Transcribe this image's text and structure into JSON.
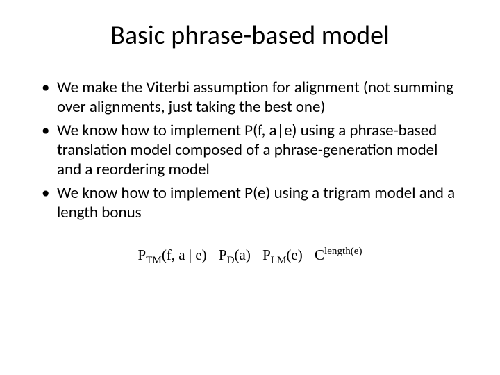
{
  "slide": {
    "title": "Basic phrase-based model",
    "bullets": [
      "We make the Viterbi assumption for alignment (not summing over alignments, just taking the best one)",
      "We know how to implement P(f, a|e) using a phrase-based translation model composed of a phrase-generation model and a reordering model",
      "We know how to implement P(e) using a trigram model and a length bonus"
    ],
    "formula": {
      "terms": [
        {
          "base": "P",
          "sub": "TM",
          "arg": "(f, a | e)"
        },
        {
          "base": "P",
          "sub": "D",
          "arg": "(a)"
        },
        {
          "base": "P",
          "sub": "LM",
          "arg": "(e)"
        },
        {
          "base": "C",
          "sup": "length(e)"
        }
      ]
    },
    "style": {
      "background_color": "#ffffff",
      "text_color": "#000000",
      "title_fontsize": 38,
      "body_fontsize": 23,
      "formula_fontsize": 21,
      "font_family_body": "Calibri",
      "font_family_formula": "Cambria Math"
    }
  }
}
